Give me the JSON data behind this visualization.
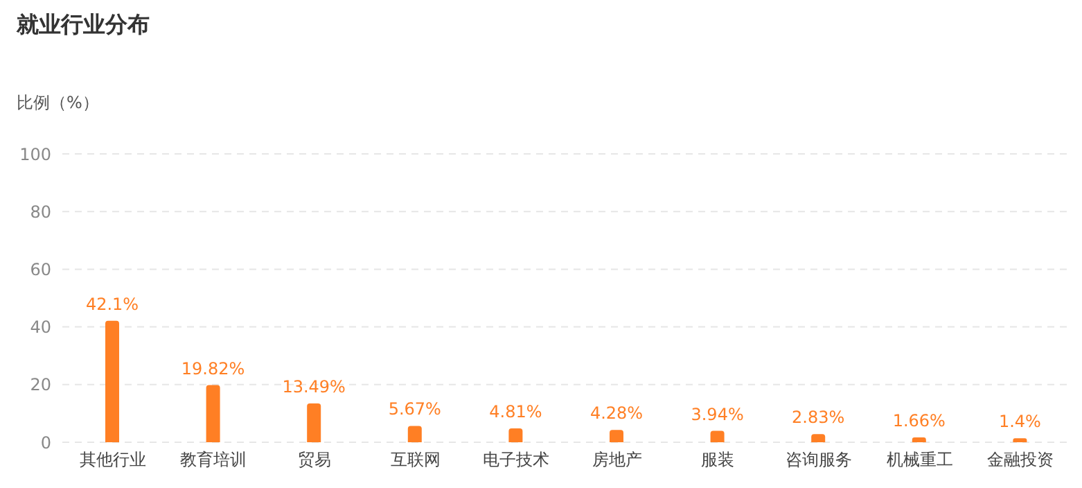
{
  "chart_data": {
    "type": "bar",
    "title": "就业行业分布",
    "ylabel": "比例（%）",
    "categories": [
      "其他行业",
      "教育培训",
      "贸易",
      "互联网",
      "电子技术",
      "房地产",
      "服装",
      "咨询服务",
      "机械重工",
      "金融投资"
    ],
    "values": [
      42.1,
      19.82,
      13.49,
      5.67,
      4.81,
      4.28,
      3.94,
      2.83,
      1.66,
      1.4
    ],
    "value_labels": [
      "42.1%",
      "19.82%",
      "13.49%",
      "5.67%",
      "4.81%",
      "4.28%",
      "3.94%",
      "2.83%",
      "1.66%",
      "1.4%"
    ],
    "color": "#ff7f24",
    "ylim": [
      0,
      100
    ],
    "yticks": [
      0,
      20,
      40,
      60,
      80,
      100
    ],
    "grid": "y"
  }
}
